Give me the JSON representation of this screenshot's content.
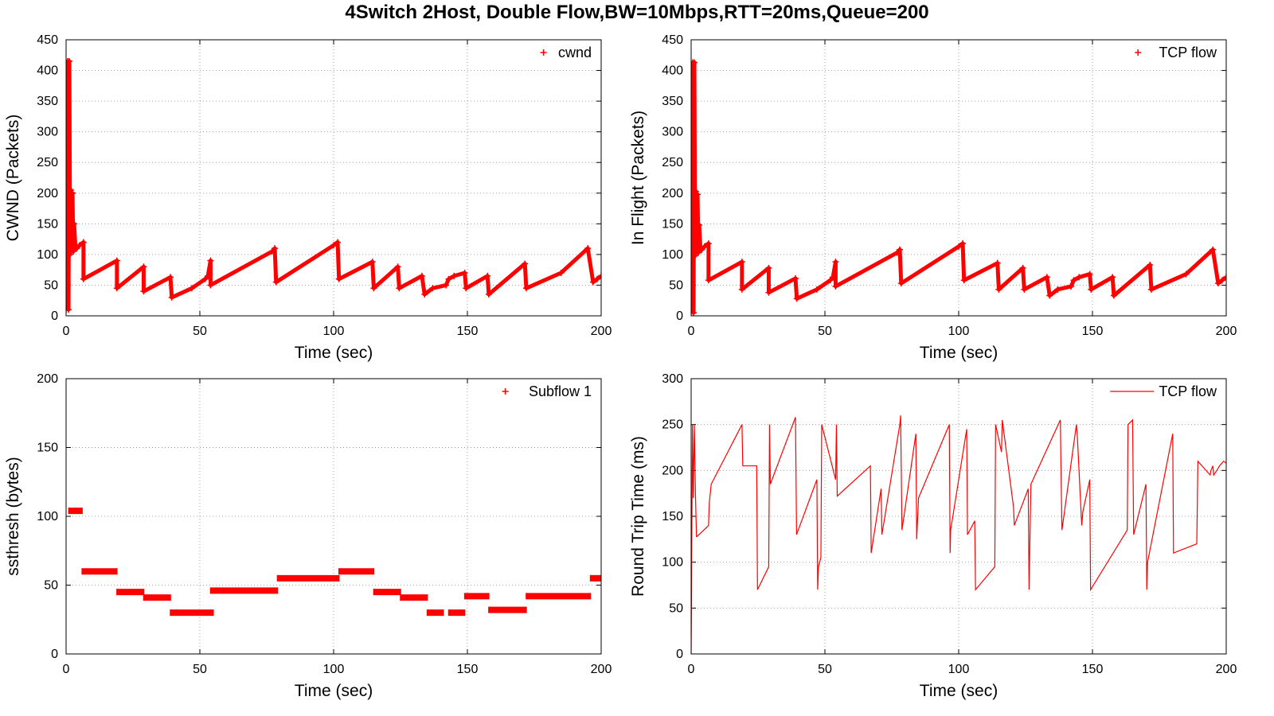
{
  "title": "4Switch 2Host, Double Flow,BW=10Mbps,RTT=20ms,Queue=200",
  "colors": {
    "series": "#ff0000",
    "grid": "#a0a0a0",
    "axes": "#000000"
  },
  "chart_data": [
    {
      "id": "cwnd",
      "type": "scatter",
      "xlabel": "Time (sec)",
      "ylabel": "CWND (Packets)",
      "xlim": [
        0,
        200
      ],
      "ylim": [
        0,
        450
      ],
      "xticks": [
        0,
        50,
        100,
        150,
        200
      ],
      "yticks": [
        0,
        50,
        100,
        150,
        200,
        250,
        300,
        350,
        400,
        450
      ],
      "grid": true,
      "legend_position": "top-right",
      "series": [
        {
          "name": "cwnd",
          "marker": "plus",
          "x": [
            0,
            0.3,
            0.6,
            0.9,
            1.2,
            1.5,
            1.8,
            2.1,
            2.4,
            2.7,
            3.0,
            3.5,
            4.0,
            5.0,
            6.5,
            6.5,
            19.0,
            19.0,
            29.0,
            29.0,
            39.0,
            39.5,
            47.0,
            52.0,
            53.0,
            54.0,
            54.0,
            77.0,
            78.0,
            78.5,
            100.0,
            101.5,
            102.0,
            114.5,
            115.0,
            124.0,
            124.5,
            133.0,
            134.0,
            137.0,
            142.0,
            143.0,
            145.0,
            149.0,
            149.5,
            157.5,
            158.0,
            171.5,
            172.0,
            185.0,
            195.0,
            197.0,
            198.5,
            200.0
          ],
          "y": [
            10,
            320,
            415,
            10,
            415,
            100,
            205,
            110,
            200,
            105,
            150,
            110,
            110,
            115,
            120,
            60,
            90,
            45,
            80,
            40,
            63,
            30,
            45,
            60,
            65,
            90,
            50,
            105,
            110,
            55,
            115,
            120,
            60,
            88,
            45,
            80,
            45,
            65,
            35,
            45,
            50,
            60,
            65,
            70,
            45,
            65,
            35,
            85,
            45,
            70,
            110,
            55,
            60,
            65
          ]
        }
      ]
    },
    {
      "id": "inflight",
      "type": "scatter",
      "xlabel": "Time (sec)",
      "ylabel": "In Flight (Packets)",
      "xlim": [
        0,
        200
      ],
      "ylim": [
        0,
        450
      ],
      "xticks": [
        0,
        50,
        100,
        150,
        200
      ],
      "yticks": [
        0,
        50,
        100,
        150,
        200,
        250,
        300,
        350,
        400,
        450
      ],
      "grid": true,
      "legend_position": "top-right",
      "series": [
        {
          "name": "TCP flow",
          "marker": "plus",
          "x": [
            0,
            0.3,
            0.6,
            0.9,
            1.2,
            1.5,
            1.8,
            2.1,
            2.4,
            2.7,
            3.0,
            3.5,
            4.0,
            5.0,
            6.5,
            6.5,
            19.0,
            19.0,
            29.0,
            29.0,
            39.0,
            39.5,
            47.0,
            52.0,
            53.0,
            54.0,
            54.0,
            77.0,
            78.0,
            78.5,
            100.0,
            101.5,
            102.0,
            114.5,
            115.0,
            124.0,
            124.5,
            133.0,
            134.0,
            137.0,
            142.0,
            143.0,
            145.0,
            149.0,
            149.5,
            157.5,
            158.0,
            171.5,
            172.0,
            185.0,
            195.0,
            197.0,
            198.5,
            200.0
          ],
          "y": [
            5,
            315,
            413,
            5,
            413,
            98,
            203,
            108,
            198,
            103,
            148,
            108,
            108,
            113,
            118,
            58,
            88,
            43,
            78,
            38,
            61,
            28,
            43,
            58,
            63,
            88,
            48,
            103,
            108,
            53,
            113,
            118,
            58,
            86,
            43,
            78,
            43,
            63,
            33,
            43,
            48,
            58,
            63,
            68,
            43,
            63,
            33,
            83,
            43,
            68,
            108,
            53,
            58,
            63
          ]
        }
      ]
    },
    {
      "id": "ssthresh",
      "type": "scatter",
      "xlabel": "Time (sec)",
      "ylabel": "ssthresh (bytes)",
      "xlim": [
        0,
        200
      ],
      "ylim": [
        0,
        200
      ],
      "xticks": [
        0,
        50,
        100,
        150,
        200
      ],
      "yticks": [
        0,
        50,
        100,
        150,
        200
      ],
      "grid": true,
      "legend_position": "top-right",
      "series": [
        {
          "name": "Subflow 1",
          "marker": "plus",
          "segments": [
            {
              "x": [
                1,
                6
              ],
              "y": 104
            },
            {
              "x": [
                6,
                19
              ],
              "y": 60
            },
            {
              "x": [
                19,
                29
              ],
              "y": 45
            },
            {
              "x": [
                29,
                39
              ],
              "y": 41
            },
            {
              "x": [
                39,
                55
              ],
              "y": 30
            },
            {
              "x": [
                54,
                79
              ],
              "y": 46
            },
            {
              "x": [
                79,
                102
              ],
              "y": 55
            },
            {
              "x": [
                102,
                115
              ],
              "y": 60
            },
            {
              "x": [
                115,
                125
              ],
              "y": 45
            },
            {
              "x": [
                125,
                135
              ],
              "y": 41
            },
            {
              "x": [
                135,
                141
              ],
              "y": 30
            },
            {
              "x": [
                143,
                149
              ],
              "y": 30
            },
            {
              "x": [
                149,
                158
              ],
              "y": 42
            },
            {
              "x": [
                158,
                172
              ],
              "y": 32
            },
            {
              "x": [
                172,
                196
              ],
              "y": 42
            },
            {
              "x": [
                196,
                200
              ],
              "y": 55
            }
          ]
        }
      ]
    },
    {
      "id": "rtt",
      "type": "line",
      "xlabel": "Time (sec)",
      "ylabel": "Round Trip Time (ms)",
      "xlim": [
        0,
        200
      ],
      "ylim": [
        0,
        300
      ],
      "xticks": [
        0,
        50,
        100,
        150,
        200
      ],
      "yticks": [
        0,
        50,
        100,
        150,
        200,
        250,
        300
      ],
      "grid": true,
      "legend_position": "top-right",
      "series": [
        {
          "name": "TCP flow",
          "x": [
            0,
            0.5,
            0.8,
            1.2,
            1.6,
            2.0,
            2.2,
            6.5,
            6.8,
            7.5,
            19.0,
            19.3,
            24.5,
            24.8,
            29.0,
            29.3,
            29.6,
            39.0,
            39.4,
            47.0,
            47.3,
            47.6,
            48.5,
            48.8,
            54.0,
            54.3,
            54.6,
            67.0,
            67.3,
            71.0,
            71.3,
            78.0,
            78.3,
            78.8,
            84.0,
            84.3,
            85.0,
            96.5,
            96.8,
            97.0,
            103.0,
            103.3,
            106.0,
            106.3,
            113.5,
            113.8,
            116.0,
            116.3,
            120.5,
            120.8,
            126.0,
            126.3,
            127.0,
            138.0,
            138.3,
            138.6,
            144.0,
            144.3,
            146.0,
            146.4,
            149.0,
            149.3,
            163.0,
            163.3,
            165.0,
            165.4,
            170.0,
            170.3,
            170.6,
            180.0,
            180.3,
            189.0,
            189.4,
            194.0,
            194.3,
            195.0,
            195.3,
            196.5,
            197.5,
            199.0,
            200.0
          ],
          "y": [
            0,
            250,
            170,
            250,
            175,
            128,
            128,
            140,
            165,
            185,
            250,
            205,
            205,
            70,
            95,
            250,
            185,
            258,
            130,
            190,
            70,
            95,
            105,
            250,
            190,
            250,
            172,
            205,
            110,
            180,
            130,
            250,
            260,
            135,
            240,
            125,
            170,
            250,
            110,
            135,
            245,
            130,
            145,
            70,
            95,
            250,
            220,
            255,
            160,
            140,
            180,
            70,
            185,
            255,
            190,
            135,
            250,
            240,
            140,
            155,
            190,
            70,
            135,
            250,
            255,
            130,
            185,
            70,
            100,
            240,
            110,
            120,
            210,
            195,
            200,
            205,
            195,
            200,
            205,
            210,
            208
          ]
        }
      ]
    }
  ]
}
